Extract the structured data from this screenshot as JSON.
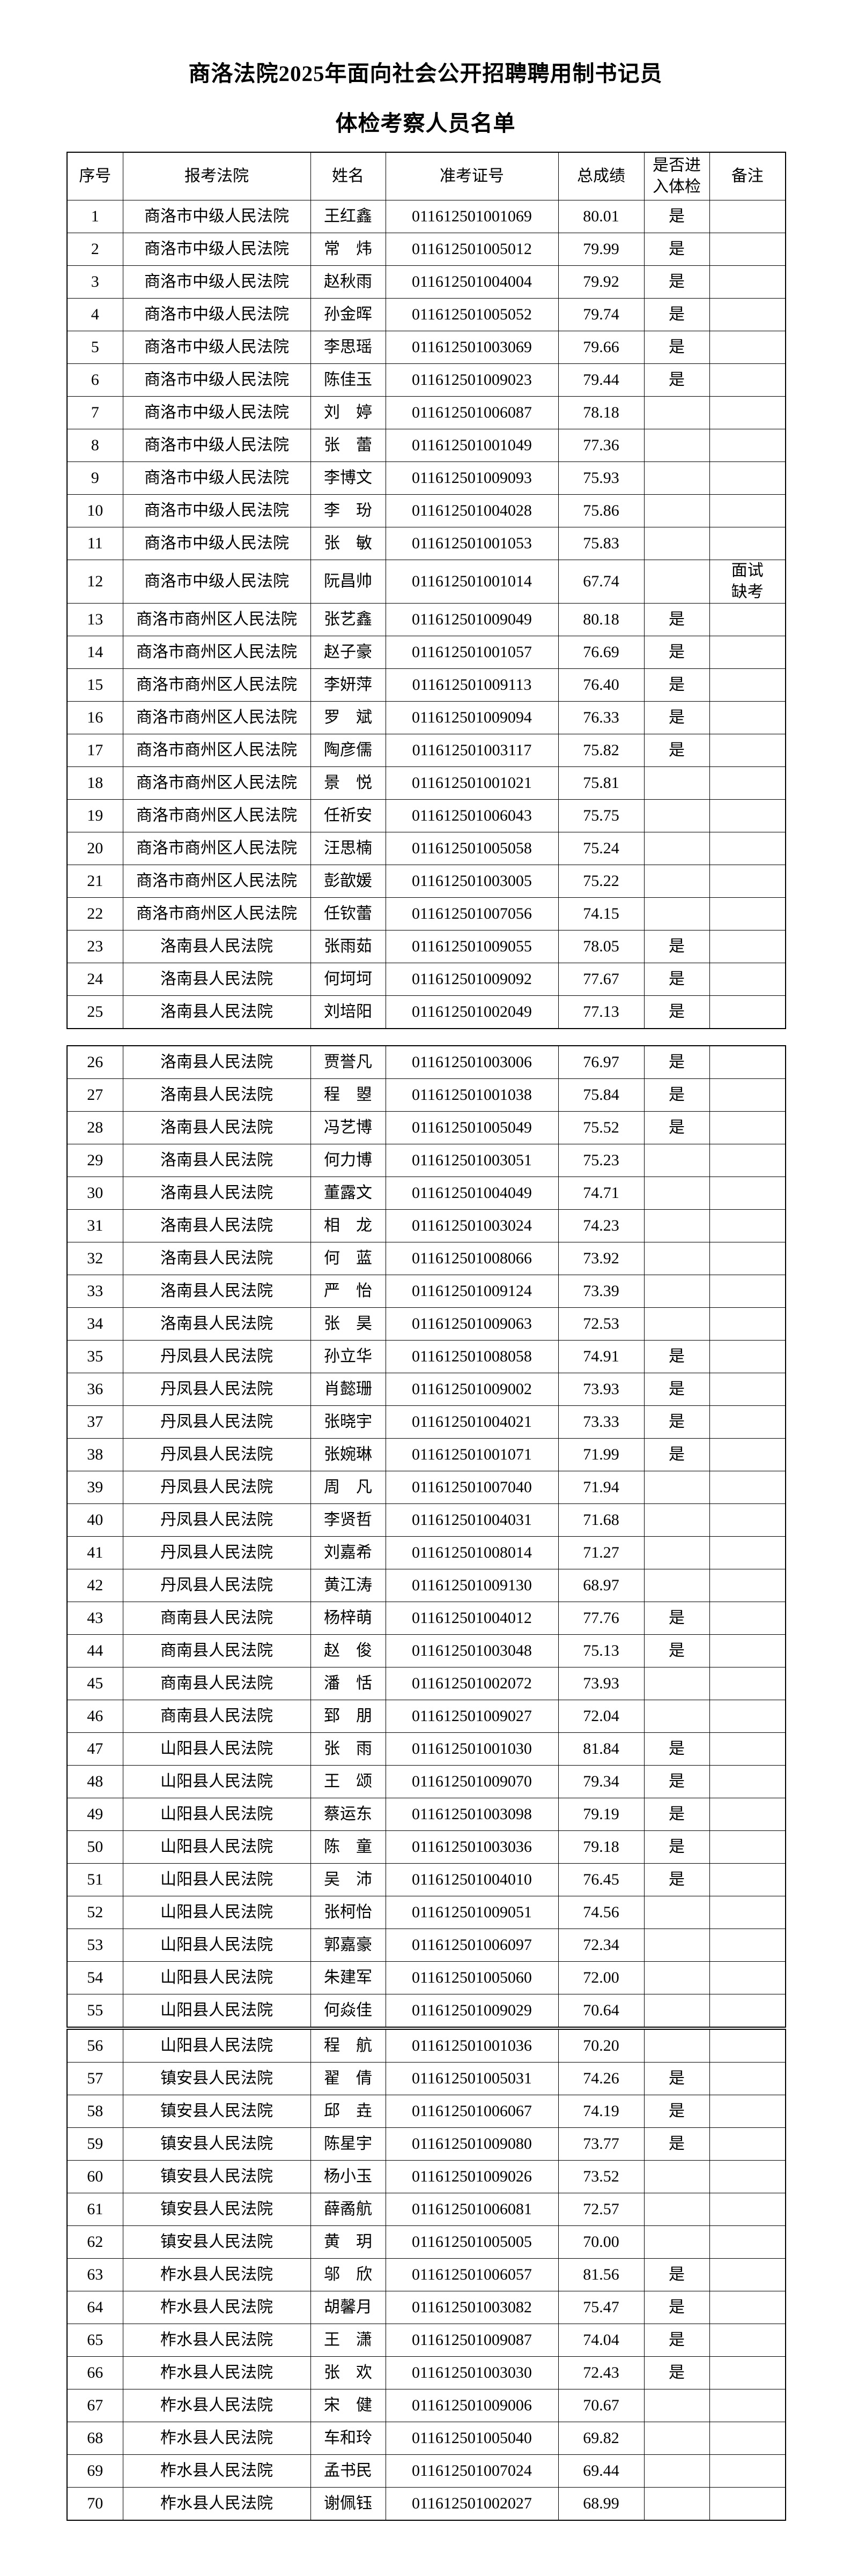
{
  "document": {
    "title_line1": "商洛法院2025年面向社会公开招聘聘用制书记员",
    "title_line2": "体检考察人员名单"
  },
  "table": {
    "headers": [
      "序号",
      "报考法院",
      "姓名",
      "准考证号",
      "总成绩",
      [
        "是否进",
        "入体检"
      ],
      "备注"
    ],
    "segments": [
      {
        "from": 1,
        "to": 25
      },
      {
        "from": 26,
        "to": 55
      },
      {
        "from": 56,
        "to": 70
      }
    ],
    "rows": [
      {
        "index": "1",
        "court": "商洛市中级人民法院",
        "name": "王红鑫",
        "exam_id": "011612501001069",
        "score": "80.01",
        "enter": "是",
        "remark": ""
      },
      {
        "index": "2",
        "court": "商洛市中级人民法院",
        "name": "常　炜",
        "exam_id": "011612501005012",
        "score": "79.99",
        "enter": "是",
        "remark": ""
      },
      {
        "index": "3",
        "court": "商洛市中级人民法院",
        "name": "赵秋雨",
        "exam_id": "011612501004004",
        "score": "79.92",
        "enter": "是",
        "remark": ""
      },
      {
        "index": "4",
        "court": "商洛市中级人民法院",
        "name": "孙金晖",
        "exam_id": "011612501005052",
        "score": "79.74",
        "enter": "是",
        "remark": ""
      },
      {
        "index": "5",
        "court": "商洛市中级人民法院",
        "name": "李思瑶",
        "exam_id": "011612501003069",
        "score": "79.66",
        "enter": "是",
        "remark": ""
      },
      {
        "index": "6",
        "court": "商洛市中级人民法院",
        "name": "陈佳玉",
        "exam_id": "011612501009023",
        "score": "79.44",
        "enter": "是",
        "remark": ""
      },
      {
        "index": "7",
        "court": "商洛市中级人民法院",
        "name": "刘　婷",
        "exam_id": "011612501006087",
        "score": "78.18",
        "enter": "",
        "remark": ""
      },
      {
        "index": "8",
        "court": "商洛市中级人民法院",
        "name": "张　蕾",
        "exam_id": "011612501001049",
        "score": "77.36",
        "enter": "",
        "remark": ""
      },
      {
        "index": "9",
        "court": "商洛市中级人民法院",
        "name": "李博文",
        "exam_id": "011612501009093",
        "score": "75.93",
        "enter": "",
        "remark": ""
      },
      {
        "index": "10",
        "court": "商洛市中级人民法院",
        "name": "李　玢",
        "exam_id": "011612501004028",
        "score": "75.86",
        "enter": "",
        "remark": ""
      },
      {
        "index": "11",
        "court": "商洛市中级人民法院",
        "name": "张　敏",
        "exam_id": "011612501001053",
        "score": "75.83",
        "enter": "",
        "remark": ""
      },
      {
        "index": "12",
        "court": "商洛市中级人民法院",
        "name": "阮昌帅",
        "exam_id": "011612501001014",
        "score": "67.74",
        "enter": "",
        "remark": "面试\n缺考"
      },
      {
        "index": "13",
        "court": "商洛市商州区人民法院",
        "name": "张艺鑫",
        "exam_id": "011612501009049",
        "score": "80.18",
        "enter": "是",
        "remark": ""
      },
      {
        "index": "14",
        "court": "商洛市商州区人民法院",
        "name": "赵子豪",
        "exam_id": "011612501001057",
        "score": "76.69",
        "enter": "是",
        "remark": ""
      },
      {
        "index": "15",
        "court": "商洛市商州区人民法院",
        "name": "李妍萍",
        "exam_id": "011612501009113",
        "score": "76.40",
        "enter": "是",
        "remark": ""
      },
      {
        "index": "16",
        "court": "商洛市商州区人民法院",
        "name": "罗　斌",
        "exam_id": "011612501009094",
        "score": "76.33",
        "enter": "是",
        "remark": ""
      },
      {
        "index": "17",
        "court": "商洛市商州区人民法院",
        "name": "陶彦儒",
        "exam_id": "011612501003117",
        "score": "75.82",
        "enter": "是",
        "remark": ""
      },
      {
        "index": "18",
        "court": "商洛市商州区人民法院",
        "name": "景　悦",
        "exam_id": "011612501001021",
        "score": "75.81",
        "enter": "",
        "remark": ""
      },
      {
        "index": "19",
        "court": "商洛市商州区人民法院",
        "name": "任祈安",
        "exam_id": "011612501006043",
        "score": "75.75",
        "enter": "",
        "remark": ""
      },
      {
        "index": "20",
        "court": "商洛市商州区人民法院",
        "name": "汪思楠",
        "exam_id": "011612501005058",
        "score": "75.24",
        "enter": "",
        "remark": ""
      },
      {
        "index": "21",
        "court": "商洛市商州区人民法院",
        "name": "彭歆媛",
        "exam_id": "011612501003005",
        "score": "75.22",
        "enter": "",
        "remark": ""
      },
      {
        "index": "22",
        "court": "商洛市商州区人民法院",
        "name": "任钦蕾",
        "exam_id": "011612501007056",
        "score": "74.15",
        "enter": "",
        "remark": ""
      },
      {
        "index": "23",
        "court": "洛南县人民法院",
        "name": "张雨茹",
        "exam_id": "011612501009055",
        "score": "78.05",
        "enter": "是",
        "remark": ""
      },
      {
        "index": "24",
        "court": "洛南县人民法院",
        "name": "何坷坷",
        "exam_id": "011612501009092",
        "score": "77.67",
        "enter": "是",
        "remark": ""
      },
      {
        "index": "25",
        "court": "洛南县人民法院",
        "name": "刘培阳",
        "exam_id": "011612501002049",
        "score": "77.13",
        "enter": "是",
        "remark": ""
      },
      {
        "index": "26",
        "court": "洛南县人民法院",
        "name": "贾誉凡",
        "exam_id": "011612501003006",
        "score": "76.97",
        "enter": "是",
        "remark": ""
      },
      {
        "index": "27",
        "court": "洛南县人民法院",
        "name": "程　曌",
        "exam_id": "011612501001038",
        "score": "75.84",
        "enter": "是",
        "remark": ""
      },
      {
        "index": "28",
        "court": "洛南县人民法院",
        "name": "冯艺博",
        "exam_id": "011612501005049",
        "score": "75.52",
        "enter": "是",
        "remark": ""
      },
      {
        "index": "29",
        "court": "洛南县人民法院",
        "name": "何力博",
        "exam_id": "011612501003051",
        "score": "75.23",
        "enter": "",
        "remark": ""
      },
      {
        "index": "30",
        "court": "洛南县人民法院",
        "name": "董露文",
        "exam_id": "011612501004049",
        "score": "74.71",
        "enter": "",
        "remark": ""
      },
      {
        "index": "31",
        "court": "洛南县人民法院",
        "name": "相　龙",
        "exam_id": "011612501003024",
        "score": "74.23",
        "enter": "",
        "remark": ""
      },
      {
        "index": "32",
        "court": "洛南县人民法院",
        "name": "何　蓝",
        "exam_id": "011612501008066",
        "score": "73.92",
        "enter": "",
        "remark": ""
      },
      {
        "index": "33",
        "court": "洛南县人民法院",
        "name": "严　怡",
        "exam_id": "011612501009124",
        "score": "73.39",
        "enter": "",
        "remark": ""
      },
      {
        "index": "34",
        "court": "洛南县人民法院",
        "name": "张　昊",
        "exam_id": "011612501009063",
        "score": "72.53",
        "enter": "",
        "remark": ""
      },
      {
        "index": "35",
        "court": "丹凤县人民法院",
        "name": "孙立华",
        "exam_id": "011612501008058",
        "score": "74.91",
        "enter": "是",
        "remark": ""
      },
      {
        "index": "36",
        "court": "丹凤县人民法院",
        "name": "肖懿珊",
        "exam_id": "011612501009002",
        "score": "73.93",
        "enter": "是",
        "remark": ""
      },
      {
        "index": "37",
        "court": "丹凤县人民法院",
        "name": "张晓宇",
        "exam_id": "011612501004021",
        "score": "73.33",
        "enter": "是",
        "remark": ""
      },
      {
        "index": "38",
        "court": "丹凤县人民法院",
        "name": "张婉琳",
        "exam_id": "011612501001071",
        "score": "71.99",
        "enter": "是",
        "remark": ""
      },
      {
        "index": "39",
        "court": "丹凤县人民法院",
        "name": "周　凡",
        "exam_id": "011612501007040",
        "score": "71.94",
        "enter": "",
        "remark": ""
      },
      {
        "index": "40",
        "court": "丹凤县人民法院",
        "name": "李贤哲",
        "exam_id": "011612501004031",
        "score": "71.68",
        "enter": "",
        "remark": ""
      },
      {
        "index": "41",
        "court": "丹凤县人民法院",
        "name": "刘嘉希",
        "exam_id": "011612501008014",
        "score": "71.27",
        "enter": "",
        "remark": ""
      },
      {
        "index": "42",
        "court": "丹凤县人民法院",
        "name": "黄江涛",
        "exam_id": "011612501009130",
        "score": "68.97",
        "enter": "",
        "remark": ""
      },
      {
        "index": "43",
        "court": "商南县人民法院",
        "name": "杨梓萌",
        "exam_id": "011612501004012",
        "score": "77.76",
        "enter": "是",
        "remark": ""
      },
      {
        "index": "44",
        "court": "商南县人民法院",
        "name": "赵　俊",
        "exam_id": "011612501003048",
        "score": "75.13",
        "enter": "是",
        "remark": ""
      },
      {
        "index": "45",
        "court": "商南县人民法院",
        "name": "潘　恬",
        "exam_id": "011612501002072",
        "score": "73.93",
        "enter": "",
        "remark": ""
      },
      {
        "index": "46",
        "court": "商南县人民法院",
        "name": "郅　朋",
        "exam_id": "011612501009027",
        "score": "72.04",
        "enter": "",
        "remark": ""
      },
      {
        "index": "47",
        "court": "山阳县人民法院",
        "name": "张　雨",
        "exam_id": "011612501001030",
        "score": "81.84",
        "enter": "是",
        "remark": ""
      },
      {
        "index": "48",
        "court": "山阳县人民法院",
        "name": "王　颂",
        "exam_id": "011612501009070",
        "score": "79.34",
        "enter": "是",
        "remark": ""
      },
      {
        "index": "49",
        "court": "山阳县人民法院",
        "name": "蔡运东",
        "exam_id": "011612501003098",
        "score": "79.19",
        "enter": "是",
        "remark": ""
      },
      {
        "index": "50",
        "court": "山阳县人民法院",
        "name": "陈　童",
        "exam_id": "011612501003036",
        "score": "79.18",
        "enter": "是",
        "remark": ""
      },
      {
        "index": "51",
        "court": "山阳县人民法院",
        "name": "吴　沛",
        "exam_id": "011612501004010",
        "score": "76.45",
        "enter": "是",
        "remark": ""
      },
      {
        "index": "52",
        "court": "山阳县人民法院",
        "name": "张柯怡",
        "exam_id": "011612501009051",
        "score": "74.56",
        "enter": "",
        "remark": ""
      },
      {
        "index": "53",
        "court": "山阳县人民法院",
        "name": "郭嘉豪",
        "exam_id": "011612501006097",
        "score": "72.34",
        "enter": "",
        "remark": ""
      },
      {
        "index": "54",
        "court": "山阳县人民法院",
        "name": "朱建军",
        "exam_id": "011612501005060",
        "score": "72.00",
        "enter": "",
        "remark": ""
      },
      {
        "index": "55",
        "court": "山阳县人民法院",
        "name": "何焱佳",
        "exam_id": "011612501009029",
        "score": "70.64",
        "enter": "",
        "remark": ""
      },
      {
        "index": "56",
        "court": "山阳县人民法院",
        "name": "程　航",
        "exam_id": "011612501001036",
        "score": "70.20",
        "enter": "",
        "remark": ""
      },
      {
        "index": "57",
        "court": "镇安县人民法院",
        "name": "翟　倩",
        "exam_id": "011612501005031",
        "score": "74.26",
        "enter": "是",
        "remark": ""
      },
      {
        "index": "58",
        "court": "镇安县人民法院",
        "name": "邱　垚",
        "exam_id": "011612501006067",
        "score": "74.19",
        "enter": "是",
        "remark": ""
      },
      {
        "index": "59",
        "court": "镇安县人民法院",
        "name": "陈星宇",
        "exam_id": "011612501009080",
        "score": "73.77",
        "enter": "是",
        "remark": ""
      },
      {
        "index": "60",
        "court": "镇安县人民法院",
        "name": "杨小玉",
        "exam_id": "011612501009026",
        "score": "73.52",
        "enter": "",
        "remark": ""
      },
      {
        "index": "61",
        "court": "镇安县人民法院",
        "name": "薛矞航",
        "exam_id": "011612501006081",
        "score": "72.57",
        "enter": "",
        "remark": ""
      },
      {
        "index": "62",
        "court": "镇安县人民法院",
        "name": "黄　玥",
        "exam_id": "011612501005005",
        "score": "70.00",
        "enter": "",
        "remark": ""
      },
      {
        "index": "63",
        "court": "柞水县人民法院",
        "name": "邬　欣",
        "exam_id": "011612501006057",
        "score": "81.56",
        "enter": "是",
        "remark": ""
      },
      {
        "index": "64",
        "court": "柞水县人民法院",
        "name": "胡馨月",
        "exam_id": "011612501003082",
        "score": "75.47",
        "enter": "是",
        "remark": ""
      },
      {
        "index": "65",
        "court": "柞水县人民法院",
        "name": "王　潇",
        "exam_id": "011612501009087",
        "score": "74.04",
        "enter": "是",
        "remark": ""
      },
      {
        "index": "66",
        "court": "柞水县人民法院",
        "name": "张　欢",
        "exam_id": "011612501003030",
        "score": "72.43",
        "enter": "是",
        "remark": ""
      },
      {
        "index": "67",
        "court": "柞水县人民法院",
        "name": "宋　健",
        "exam_id": "011612501009006",
        "score": "70.67",
        "enter": "",
        "remark": ""
      },
      {
        "index": "68",
        "court": "柞水县人民法院",
        "name": "车和玲",
        "exam_id": "011612501005040",
        "score": "69.82",
        "enter": "",
        "remark": ""
      },
      {
        "index": "69",
        "court": "柞水县人民法院",
        "name": "孟书民",
        "exam_id": "011612501007024",
        "score": "69.44",
        "enter": "",
        "remark": ""
      },
      {
        "index": "70",
        "court": "柞水县人民法院",
        "name": "谢佩钰",
        "exam_id": "011612501002027",
        "score": "68.99",
        "enter": "",
        "remark": ""
      }
    ]
  }
}
